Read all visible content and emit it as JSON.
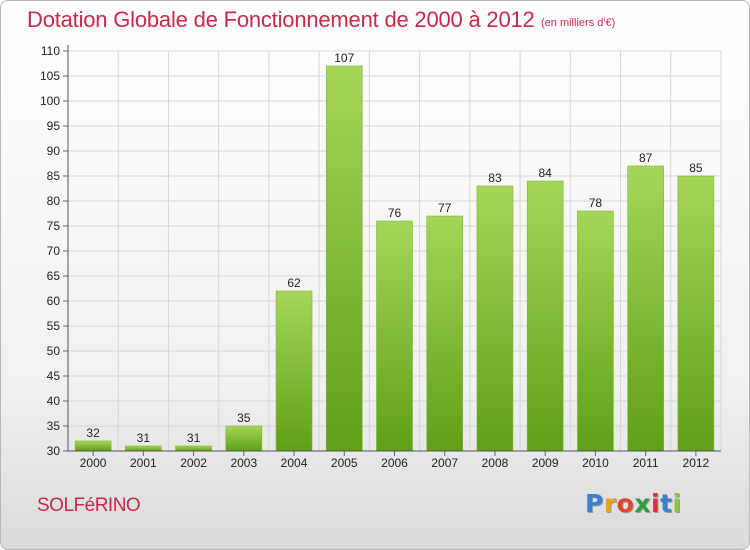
{
  "header": {
    "title": "Dotation Globale de Fonctionnement de 2000 à 2012",
    "subtitle": "(en milliers d'€)"
  },
  "commune": "SOLFéRINO",
  "logo": {
    "letters": [
      "P",
      "r",
      "o",
      "x",
      "i",
      "t",
      "i"
    ],
    "colors": [
      "#3b7fd0",
      "#f0a01c",
      "#e1452a",
      "#2e9e3e",
      "#d8323c",
      "#3b7fd0",
      "#8cc63f"
    ]
  },
  "colors": {
    "title": "#c8284a",
    "bar_light": "#a5d65a",
    "bar_dark": "#5f9f18",
    "grid": "#d6d6d6"
  },
  "chart_data": {
    "type": "bar",
    "categories": [
      "2000",
      "2001",
      "2002",
      "2003",
      "2004",
      "2005",
      "2006",
      "2007",
      "2008",
      "2009",
      "2010",
      "2011",
      "2012"
    ],
    "values": [
      32,
      31,
      31,
      35,
      62,
      107,
      76,
      77,
      83,
      84,
      78,
      87,
      85
    ],
    "y_ticks": [
      30,
      35,
      40,
      45,
      50,
      55,
      60,
      65,
      70,
      75,
      80,
      85,
      90,
      95,
      100,
      105,
      110
    ],
    "ylim": [
      30,
      110
    ],
    "grid": true,
    "data_labels": true
  }
}
